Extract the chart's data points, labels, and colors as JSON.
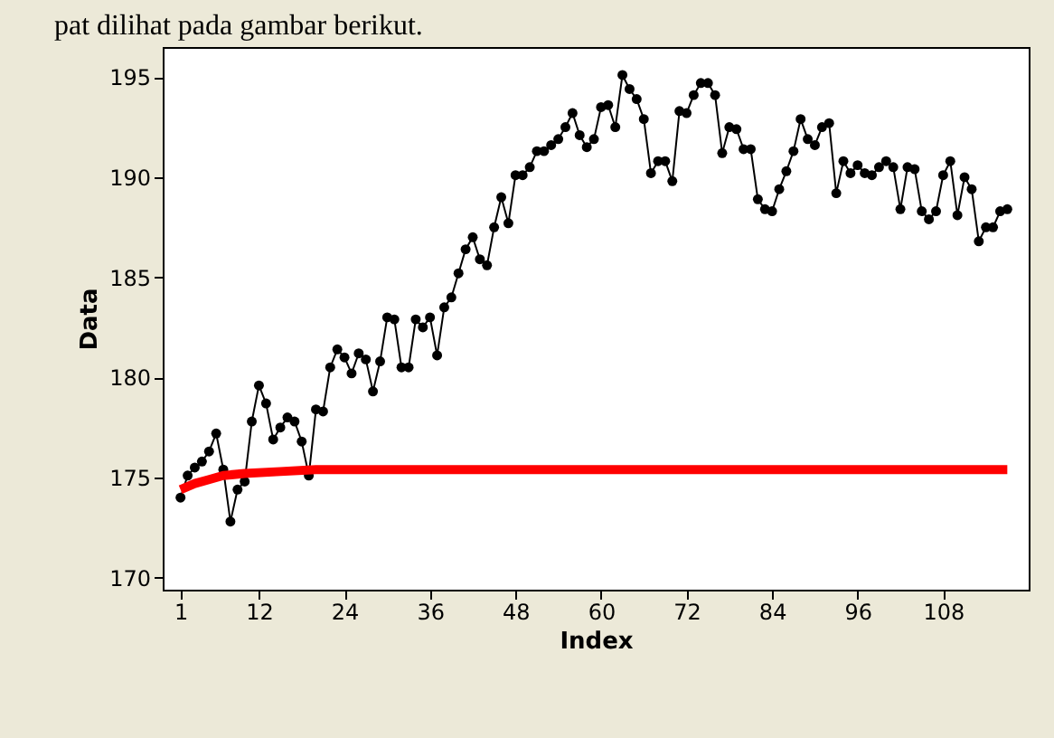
{
  "chart_data": {
    "type": "line",
    "xlabel": "Index",
    "ylabel": "Data",
    "annotations": [
      "pat dilihat pada gambar berikut."
    ],
    "xlim": [
      -1.5,
      120
    ],
    "xticks": [
      1,
      12,
      24,
      36,
      48,
      60,
      72,
      84,
      96,
      108
    ],
    "ylim": [
      169.4,
      196.5
    ],
    "yticks": [
      170,
      175,
      180,
      185,
      190,
      195
    ],
    "grid": false,
    "line_style": "solid",
    "series": [
      {
        "color": "#000000",
        "marker": "circle",
        "x": [
          1,
          2,
          3,
          4,
          5,
          6,
          7,
          8,
          9,
          10,
          11,
          12,
          13,
          14,
          15,
          16,
          17,
          18,
          19,
          20,
          21,
          22,
          23,
          24,
          25,
          26,
          27,
          28,
          29,
          30,
          31,
          32,
          33,
          34,
          35,
          36,
          37,
          38,
          39,
          40,
          41,
          42,
          43,
          44,
          45,
          46,
          47,
          48,
          49,
          50,
          51,
          52,
          53,
          54,
          55,
          56,
          57,
          58,
          59,
          60,
          61,
          62,
          63,
          64,
          65,
          66,
          67,
          68,
          69,
          70,
          71,
          72,
          73,
          74,
          75,
          76,
          77,
          78,
          79,
          80,
          81,
          82,
          83,
          84,
          85,
          86,
          87,
          88,
          89,
          90,
          91,
          92,
          93,
          94,
          95,
          96,
          97,
          98,
          99,
          100,
          101,
          102,
          103,
          104,
          105,
          106,
          107,
          108,
          109,
          110,
          111,
          112,
          113,
          114,
          115,
          116,
          117
        ],
        "values": [
          174.0,
          175.1,
          175.5,
          175.8,
          176.3,
          177.2,
          175.4,
          172.8,
          174.4,
          174.8,
          177.8,
          179.6,
          178.7,
          176.9,
          177.5,
          178.0,
          177.8,
          176.8,
          175.1,
          178.4,
          178.3,
          180.5,
          181.4,
          181.0,
          180.2,
          181.2,
          180.9,
          179.3,
          180.8,
          183.0,
          182.9,
          180.5,
          180.5,
          182.9,
          182.5,
          183.0,
          181.1,
          183.5,
          184.0,
          185.2,
          186.4,
          187.0,
          185.9,
          185.6,
          187.5,
          189.0,
          187.7,
          190.1,
          190.1,
          190.5,
          191.3,
          191.3,
          191.6,
          191.9,
          192.5,
          193.2,
          192.1,
          191.5,
          191.9,
          193.5,
          193.6,
          192.5,
          195.1,
          194.4,
          193.9,
          192.9,
          190.2,
          190.8,
          190.8,
          189.8,
          193.3,
          193.2,
          194.1,
          194.7,
          194.7,
          194.1,
          191.2,
          192.5,
          192.4,
          191.4,
          191.4,
          188.9,
          188.4,
          188.3,
          189.4,
          190.3,
          191.3,
          192.9,
          191.9,
          191.6,
          192.5,
          192.7,
          189.2,
          190.8,
          190.2,
          190.6,
          190.2,
          190.1,
          190.5,
          190.8,
          190.5,
          188.4,
          190.5,
          190.4,
          188.3,
          187.9,
          188.3,
          190.1,
          190.8,
          188.1,
          190.0,
          189.4,
          186.8,
          187.5,
          187.5,
          188.3,
          188.4
        ]
      },
      {
        "color": "#ff0000",
        "marker": "none",
        "x": [
          1,
          3,
          5,
          7,
          10,
          15,
          20,
          117
        ],
        "values": [
          174.4,
          174.7,
          174.9,
          175.1,
          175.2,
          175.3,
          175.4,
          175.4
        ]
      }
    ]
  }
}
